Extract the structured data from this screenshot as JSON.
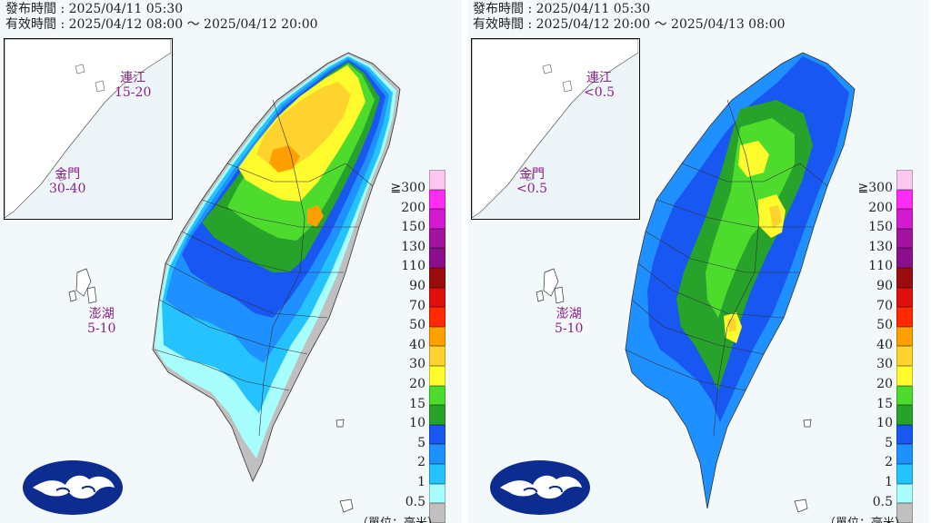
{
  "panels": [
    {
      "issue_label": "發布時間",
      "issue_time": "2025/04/11 05:30",
      "valid_label": "有效時間",
      "valid_start": "2025/04/12 08:00",
      "valid_end": "2025/04/12 20:00",
      "islands": {
        "matsu": {
          "name": "連江",
          "value": "15-20"
        },
        "kinmen": {
          "name": "金門",
          "value": "30-40"
        },
        "penghu": {
          "name": "澎湖",
          "value": "5-10"
        }
      }
    },
    {
      "issue_label": "發布時間",
      "issue_time": "2025/04/11 05:30",
      "valid_label": "有效時間",
      "valid_start": "2025/04/12 20:00",
      "valid_end": "2025/04/13 08:00",
      "islands": {
        "matsu": {
          "name": "連江",
          "value": "<0.5"
        },
        "kinmen": {
          "name": "金門",
          "value": "<0.5"
        },
        "penghu": {
          "name": "澎湖",
          "value": "5-10"
        }
      }
    }
  ],
  "separator": " : ",
  "range_sep": " ～ ",
  "legend": {
    "labels": [
      "≧300",
      "200",
      "150",
      "130",
      "110",
      "90",
      "70",
      "50",
      "40",
      "30",
      "20",
      "15",
      "10",
      "5",
      "2",
      "1",
      "0.5"
    ],
    "colors": [
      "#fdc7f0",
      "#ff2cf4",
      "#d21bd0",
      "#a2149f",
      "#8b0f8c",
      "#9b0c0e",
      "#e00f0c",
      "#ff2a00",
      "#ff9f00",
      "#fed32d",
      "#fffb2d",
      "#4ddb2e",
      "#27a22b",
      "#1857f2",
      "#1f90ff",
      "#24c3ff",
      "#a8fdfd",
      "#c0c0c0"
    ],
    "unit_text": "（單位：毫米）"
  },
  "colors": {
    "inset_border": "#111111",
    "island_label": "#8a1f8a",
    "logo_bg": "#0d2c8f"
  },
  "icons": {
    "logo": "cwa-cloud-logo-icon"
  }
}
